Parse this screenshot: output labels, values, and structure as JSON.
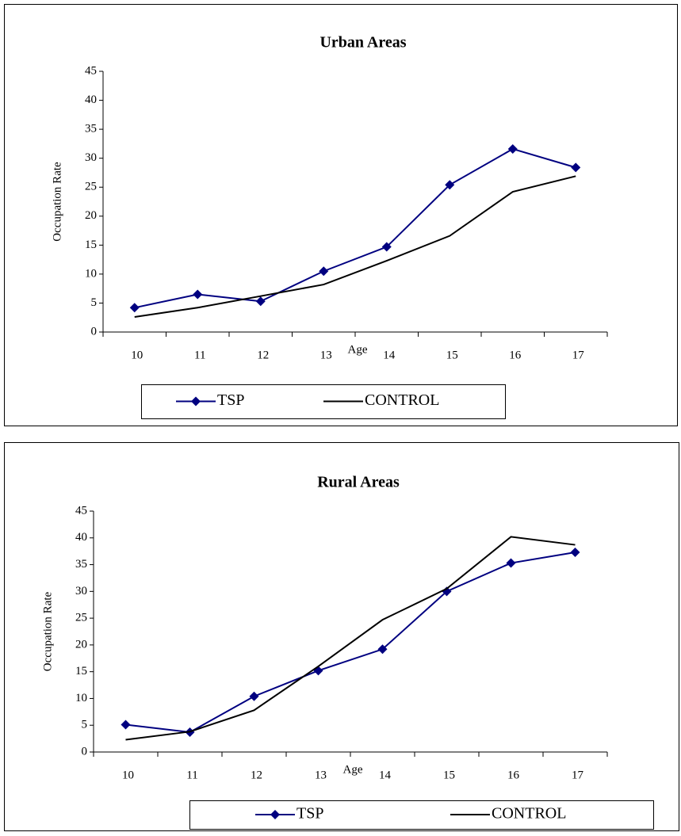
{
  "chart_data": [
    {
      "type": "line",
      "title": "Urban Areas",
      "x_label": "Age",
      "y_label": "Occupation Rate",
      "categories": [
        "10",
        "11",
        "12",
        "13",
        "14",
        "15",
        "16",
        "17"
      ],
      "series": [
        {
          "name": "TSP",
          "color": "#000080",
          "marker": "diamond",
          "values": [
            4.2,
            6.5,
            5.3,
            10.5,
            14.7,
            25.4,
            31.6,
            28.4
          ]
        },
        {
          "name": "CONTROL",
          "color": "#000000",
          "values": [
            2.6,
            4.2,
            6.2,
            8.2,
            12.3,
            16.6,
            24.2,
            26.9
          ]
        }
      ],
      "ylim": [
        0,
        45
      ],
      "yticks": [
        0,
        5,
        10,
        15,
        20,
        25,
        30,
        35,
        40,
        45
      ],
      "grid": false,
      "legend": "bottom"
    },
    {
      "type": "line",
      "title": "Rural Areas",
      "x_label": "Age",
      "y_label": "Occupation Rate",
      "categories": [
        "10",
        "11",
        "12",
        "13",
        "14",
        "15",
        "16",
        "17"
      ],
      "series": [
        {
          "name": "TSP",
          "color": "#000080",
          "marker": "diamond",
          "values": [
            5.1,
            3.7,
            10.4,
            15.2,
            19.2,
            30.0,
            35.3,
            37.3
          ]
        },
        {
          "name": "CONTROL",
          "color": "#000000",
          "values": [
            2.3,
            3.8,
            7.8,
            16.0,
            24.7,
            30.5,
            40.2,
            38.7
          ]
        }
      ],
      "ylim": [
        0,
        45
      ],
      "yticks": [
        0,
        5,
        10,
        15,
        20,
        25,
        30,
        35,
        40,
        45
      ],
      "grid": false,
      "legend": "bottom"
    }
  ]
}
